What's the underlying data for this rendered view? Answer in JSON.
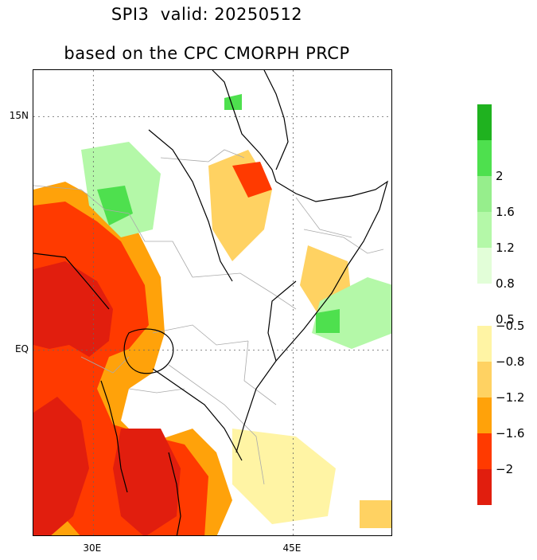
{
  "title": {
    "line1": "SPI3  valid: 20250512",
    "line2": "based on the CPC CMORPH PRCP"
  },
  "axes": {
    "y_ticks": [
      {
        "label": "15N",
        "lat": 15
      },
      {
        "label": "EQ",
        "lat": 0
      }
    ],
    "x_ticks": [
      {
        "label": "30E",
        "lon": 30
      },
      {
        "label": "45E",
        "lon": 45
      }
    ],
    "lon_range": [
      25.5,
      52.5
    ],
    "lat_range": [
      -12,
      18
    ],
    "gridlines": "dotted"
  },
  "legend": {
    "wet": [
      {
        "color": "#1fb21f",
        "label": ""
      },
      {
        "color": "#4ee04e",
        "label": "2"
      },
      {
        "color": "#96ee8c",
        "label": "1.6"
      },
      {
        "color": "#b4f8a8",
        "label": "1.2"
      },
      {
        "color": "#e2fed8",
        "label": "0.8"
      },
      {
        "color": "#ffffff",
        "label": "0.5"
      }
    ],
    "dry": [
      {
        "color": "#fff4a4",
        "label": "−0.5"
      },
      {
        "color": "#ffd262",
        "label": "−0.8"
      },
      {
        "color": "#ffa20a",
        "label": "−1.2"
      },
      {
        "color": "#ff3a00",
        "label": "−1.6"
      },
      {
        "color": "#e11e0e",
        "label": "−2"
      }
    ]
  },
  "colors": {
    "frame": "#000000",
    "coast": "#000000",
    "borders": "#aaaaaa"
  }
}
